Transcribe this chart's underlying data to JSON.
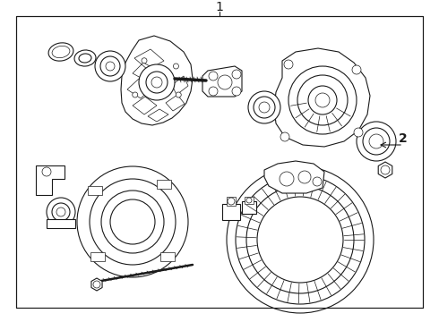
{
  "title": "1",
  "label_2": "2",
  "bg_color": "#ffffff",
  "line_color": "#1a1a1a",
  "title_fontsize": 10,
  "label_fontsize": 10,
  "fig_width": 4.9,
  "fig_height": 3.6,
  "dpi": 100
}
